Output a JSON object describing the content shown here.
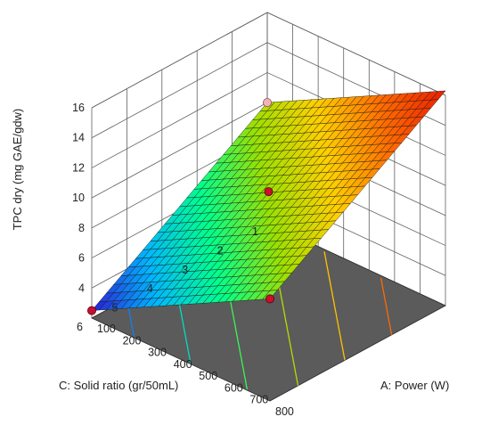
{
  "chart_data": {
    "type": "surface3d",
    "title": "",
    "xlabel": "A: Power (W)",
    "ylabel": "C: Solid ratio (gr/50mL)",
    "zlabel": "TPC dry (mg GAE/gdw)",
    "xlim": [
      100,
      800
    ],
    "ylim": [
      1,
      6
    ],
    "zlim": [
      2,
      16
    ],
    "x_ticks": [
      "100",
      "200",
      "300",
      "400",
      "500",
      "600",
      "700",
      "800"
    ],
    "y_ticks": [
      "1",
      "2",
      "3",
      "4",
      "5",
      "6"
    ],
    "z_ticks": [
      "4",
      "6",
      "8",
      "10",
      "12",
      "14",
      "16"
    ],
    "colormap": [
      "#2a1bd4",
      "#00b7ff",
      "#00ff8c",
      "#9be000",
      "#ffd000",
      "#ff6a00",
      "#e81b00"
    ],
    "surface_corners": [
      {
        "power": 100,
        "solid_ratio": 1,
        "tpc": 10.0
      },
      {
        "power": 800,
        "solid_ratio": 1,
        "tpc": 16.3
      },
      {
        "power": 100,
        "solid_ratio": 6,
        "tpc": 2.5
      },
      {
        "power": 800,
        "solid_ratio": 6,
        "tpc": 8.8
      }
    ],
    "design_points": [
      {
        "power": 100,
        "solid_ratio": 1,
        "tpc": 10.0
      },
      {
        "power": 450,
        "solid_ratio": 3.5,
        "tpc": 10.0
      },
      {
        "power": 800,
        "solid_ratio": 6,
        "tpc": 8.8
      },
      {
        "power": 100,
        "solid_ratio": 6,
        "tpc": 2.5
      }
    ]
  }
}
